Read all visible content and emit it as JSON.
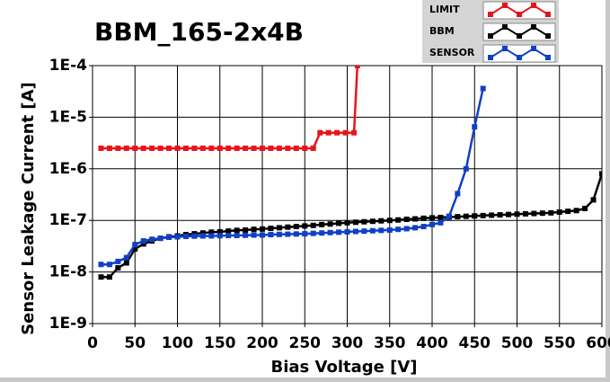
{
  "chart_data": {
    "type": "line",
    "title": "BBM_165-2x4B",
    "x_label": "Bias Voltage [V]",
    "y_label": "Sensor Leakage Current [A]",
    "log_y": true,
    "grid": true,
    "xlim": [
      0,
      600
    ],
    "xticks": [
      0,
      50,
      100,
      150,
      200,
      250,
      300,
      350,
      400,
      450,
      500,
      550,
      600
    ],
    "ylim": [
      1e-09,
      0.0001
    ],
    "yticks": [
      {
        "value": 1e-09,
        "label": "1E-9"
      },
      {
        "value": 1e-08,
        "label": "1E-8"
      },
      {
        "value": 1e-07,
        "label": "1E-7"
      },
      {
        "value": 1e-06,
        "label": "1E-6"
      },
      {
        "value": 1e-05,
        "label": "1E-5"
      },
      {
        "value": 0.0001,
        "label": "1E-4"
      }
    ],
    "series": [
      {
        "name": "LIMIT",
        "color": "#e8141c",
        "x": [
          10,
          20,
          30,
          40,
          50,
          60,
          70,
          80,
          90,
          100,
          110,
          120,
          130,
          140,
          150,
          160,
          170,
          180,
          190,
          200,
          210,
          220,
          230,
          240,
          250,
          260,
          268,
          278,
          288,
          298,
          308,
          312
        ],
        "values": [
          2.5e-06,
          2.5e-06,
          2.5e-06,
          2.5e-06,
          2.5e-06,
          2.5e-06,
          2.5e-06,
          2.5e-06,
          2.5e-06,
          2.5e-06,
          2.5e-06,
          2.5e-06,
          2.5e-06,
          2.5e-06,
          2.5e-06,
          2.5e-06,
          2.5e-06,
          2.5e-06,
          2.5e-06,
          2.5e-06,
          2.5e-06,
          2.5e-06,
          2.5e-06,
          2.5e-06,
          2.5e-06,
          2.5e-06,
          5e-06,
          5e-06,
          5e-06,
          5e-06,
          5e-06,
          0.0001
        ]
      },
      {
        "name": "BBM",
        "color": "#000000",
        "x": [
          10,
          20,
          30,
          40,
          50,
          60,
          70,
          80,
          90,
          100,
          110,
          120,
          130,
          140,
          150,
          160,
          170,
          180,
          190,
          200,
          210,
          220,
          230,
          240,
          250,
          260,
          270,
          280,
          290,
          300,
          310,
          320,
          330,
          340,
          350,
          360,
          370,
          380,
          390,
          400,
          410,
          420,
          430,
          440,
          450,
          460,
          470,
          480,
          490,
          500,
          510,
          520,
          530,
          540,
          550,
          560,
          570,
          580,
          590,
          600
        ],
        "values": [
          8e-09,
          8e-09,
          1.2e-08,
          1.5e-08,
          2.8e-08,
          3.5e-08,
          4e-08,
          4.5e-08,
          4.8e-08,
          5e-08,
          5.3e-08,
          5.5e-08,
          5.7e-08,
          5.9e-08,
          6e-08,
          6.2e-08,
          6.4e-08,
          6.5e-08,
          6.7e-08,
          6.8e-08,
          7e-08,
          7.2e-08,
          7.4e-08,
          7.6e-08,
          7.8e-08,
          8e-08,
          8.3e-08,
          8.5e-08,
          8.8e-08,
          9e-08,
          9.2e-08,
          9.4e-08,
          9.6e-08,
          9.8e-08,
          1e-07,
          1.02e-07,
          1.05e-07,
          1.07e-07,
          1.1e-07,
          1.12e-07,
          1.14e-07,
          1.16e-07,
          1.18e-07,
          1.2e-07,
          1.22e-07,
          1.24e-07,
          1.26e-07,
          1.28e-07,
          1.3e-07,
          1.32e-07,
          1.34e-07,
          1.36e-07,
          1.38e-07,
          1.4e-07,
          1.45e-07,
          1.5e-07,
          1.55e-07,
          1.7e-07,
          2.5e-07,
          8e-07
        ]
      },
      {
        "name": "SENSOR",
        "color": "#1040c8",
        "x": [
          10,
          20,
          30,
          40,
          50,
          60,
          70,
          80,
          90,
          100,
          110,
          120,
          130,
          140,
          150,
          160,
          170,
          180,
          190,
          200,
          210,
          220,
          230,
          240,
          250,
          260,
          270,
          280,
          290,
          300,
          310,
          320,
          330,
          340,
          350,
          360,
          370,
          380,
          390,
          400,
          410,
          420,
          430,
          440,
          450,
          460
        ],
        "values": [
          1.4e-08,
          1.4e-08,
          1.6e-08,
          1.9e-08,
          3.4e-08,
          4e-08,
          4.3e-08,
          4.5e-08,
          4.7e-08,
          4.8e-08,
          4.9e-08,
          4.95e-08,
          5e-08,
          5e-08,
          5.05e-08,
          5.1e-08,
          5.1e-08,
          5.15e-08,
          5.2e-08,
          5.2e-08,
          5.3e-08,
          5.35e-08,
          5.4e-08,
          5.45e-08,
          5.5e-08,
          5.6e-08,
          5.7e-08,
          5.8e-08,
          5.9e-08,
          6e-08,
          6.1e-08,
          6.2e-08,
          6.3e-08,
          6.4e-08,
          6.5e-08,
          6.7e-08,
          6.9e-08,
          7.2e-08,
          7.6e-08,
          8.3e-08,
          9e-08,
          1.2e-07,
          3.3e-07,
          1e-06,
          6.5e-06,
          3.6e-05
        ]
      }
    ]
  }
}
